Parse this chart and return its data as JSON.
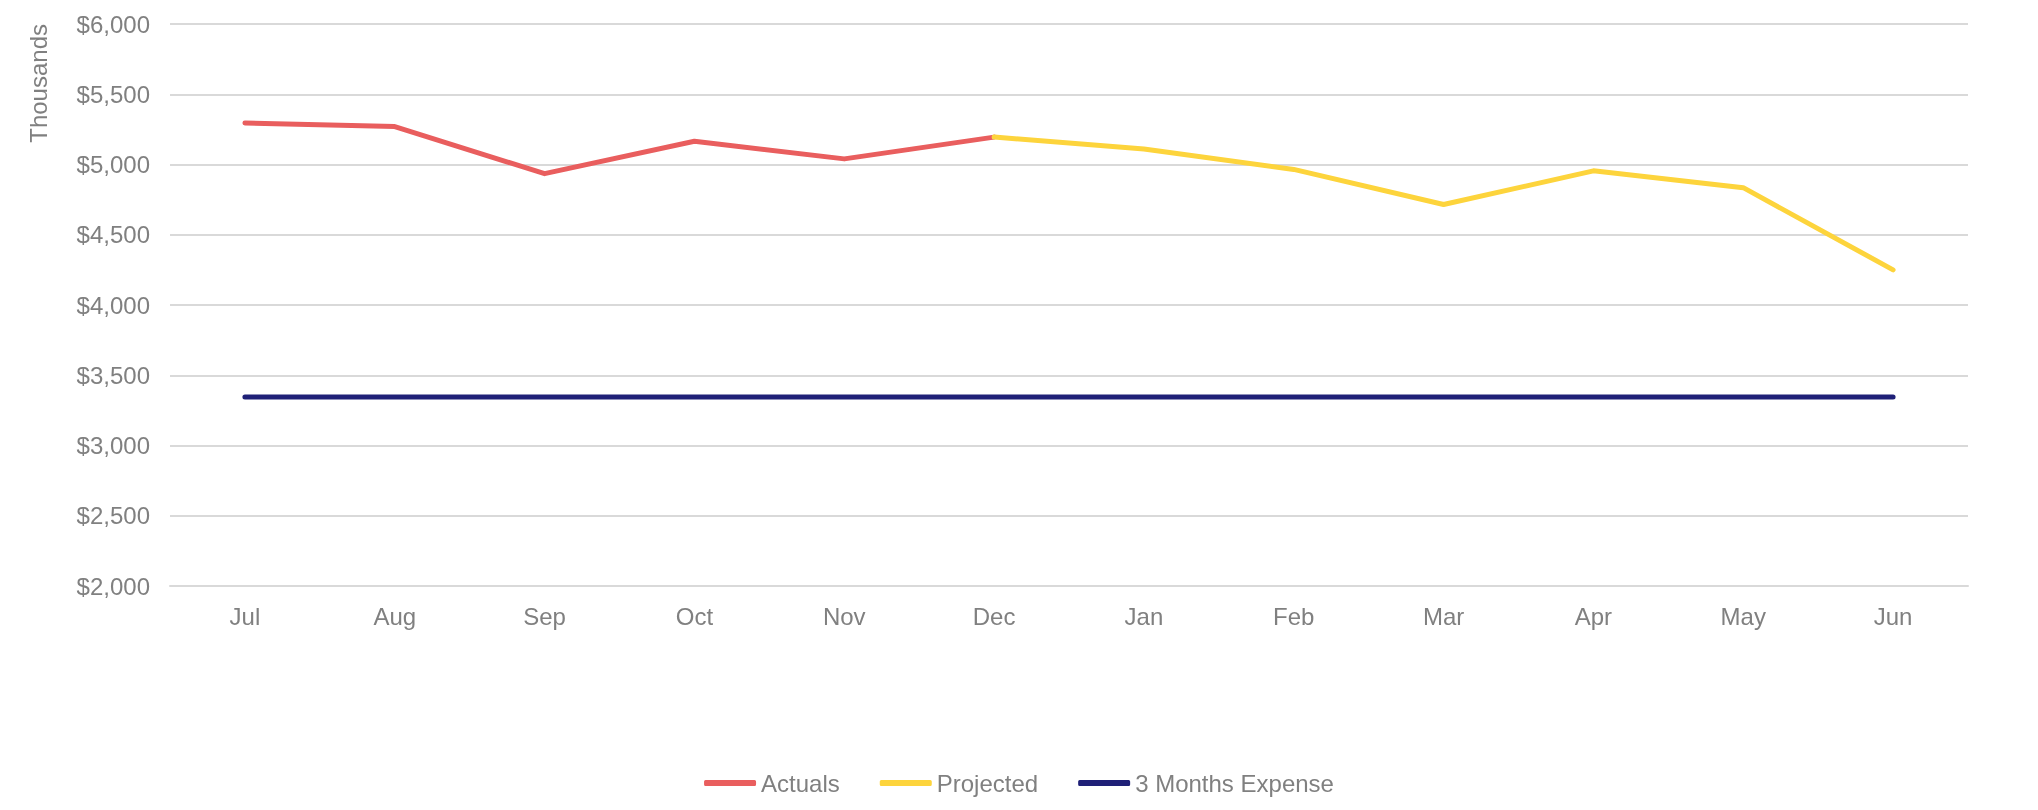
{
  "chart_data": {
    "type": "line",
    "ylabel": "Thousands",
    "categories": [
      "Jul",
      "Aug",
      "Sep",
      "Oct",
      "Nov",
      "Dec",
      "Jan",
      "Feb",
      "Mar",
      "Apr",
      "May",
      "Jun"
    ],
    "series": [
      {
        "name": "Actuals",
        "color": "#e95e5e",
        "values": [
          5295,
          5270,
          4935,
          5165,
          5040,
          5195,
          null,
          null,
          null,
          null,
          null,
          null
        ]
      },
      {
        "name": "Projected",
        "color": "#fdd43c",
        "values": [
          null,
          null,
          null,
          null,
          null,
          5195,
          5110,
          4965,
          4715,
          4955,
          4835,
          4250
        ]
      },
      {
        "name": "3 Months Expense",
        "color": "#1f2077",
        "values": [
          3345,
          3345,
          3345,
          3345,
          3345,
          3345,
          3345,
          3345,
          3345,
          3345,
          3345,
          3345
        ]
      }
    ],
    "ylim": [
      2000,
      6000
    ],
    "yticks": [
      {
        "value": 2000,
        "label": "$2,000"
      },
      {
        "value": 2500,
        "label": "$2,500"
      },
      {
        "value": 3000,
        "label": "$3,000"
      },
      {
        "value": 3500,
        "label": "$3,500"
      },
      {
        "value": 4000,
        "label": "$4,000"
      },
      {
        "value": 4500,
        "label": "$4,500"
      },
      {
        "value": 5000,
        "label": "$5,000"
      },
      {
        "value": 5500,
        "label": "$5,500"
      },
      {
        "value": 6000,
        "label": "$6,000"
      }
    ],
    "grid": "y",
    "legend": "bottom",
    "marker": "none",
    "line_style": "solid"
  }
}
